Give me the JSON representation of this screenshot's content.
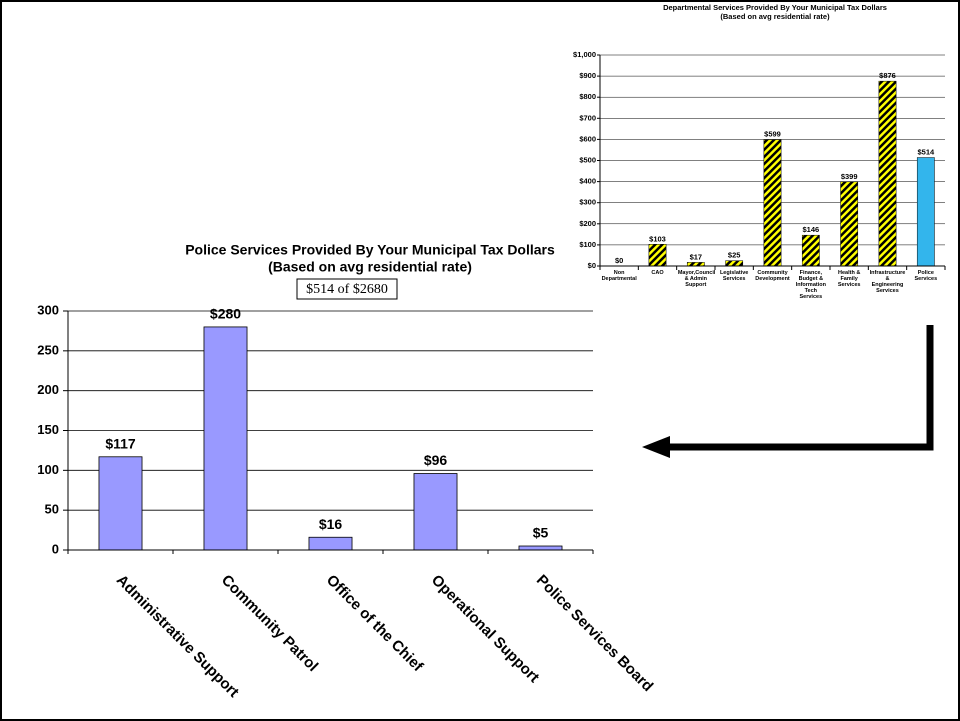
{
  "chart_data": [
    {
      "type": "bar",
      "title": "Departmental Services Provided By Your Municipal Tax Dollars",
      "subtitle": "(Based on avg residential rate)",
      "categories": [
        "Non Departmental",
        "CAO",
        "Mayor,Council & Admin Support",
        "Legislative Services",
        "Community Development",
        "Finance, Budget & Information Tech Services",
        "Health & Family Services",
        "Infrastructure & Engineering Services",
        "Police Services"
      ],
      "values": [
        0,
        103,
        17,
        25,
        599,
        146,
        399,
        876,
        514
      ],
      "value_labels": [
        "$0",
        "$103",
        "$17",
        "$25",
        "$599",
        "$146",
        "$399",
        "$876",
        "$514"
      ],
      "colors": [
        "#ffff00",
        "#ffff00",
        "#ffff00",
        "#ffff00",
        "#ffff00",
        "#ffff00",
        "#ffff00",
        "#ffff00",
        "#33b5ec"
      ],
      "hatched": [
        true,
        true,
        true,
        true,
        true,
        true,
        true,
        true,
        false
      ],
      "ylim": [
        0,
        1000
      ],
      "yticks": [
        {
          "value": 0,
          "label": "$0"
        },
        {
          "value": 100,
          "label": "$100"
        },
        {
          "value": 200,
          "label": "$200"
        },
        {
          "value": 300,
          "label": "$300"
        },
        {
          "value": 400,
          "label": "$400"
        },
        {
          "value": 500,
          "label": "$500"
        },
        {
          "value": 600,
          "label": "$600"
        },
        {
          "value": 700,
          "label": "$700"
        },
        {
          "value": 800,
          "label": "$800"
        },
        {
          "value": 900,
          "label": "$900"
        },
        {
          "value": 1000,
          "label": "$1,000"
        }
      ],
      "grid": true
    },
    {
      "type": "bar",
      "title": "Police Services Provided By Your Municipal Tax Dollars",
      "subtitle": "(Based on avg residential rate)",
      "annotation": "$514 of $2680",
      "categories": [
        "Administrative Support",
        "Community Patrol",
        "Office of the Chief",
        "Operational Support",
        "Police Services Board"
      ],
      "values": [
        117,
        280,
        16,
        96,
        5
      ],
      "value_labels": [
        "$117",
        "$280",
        "$16",
        "$96",
        "$5"
      ],
      "color": "#9999ff",
      "ylim": [
        0,
        300
      ],
      "yticks": [
        0,
        50,
        100,
        150,
        200,
        250,
        300
      ],
      "grid": true
    }
  ]
}
